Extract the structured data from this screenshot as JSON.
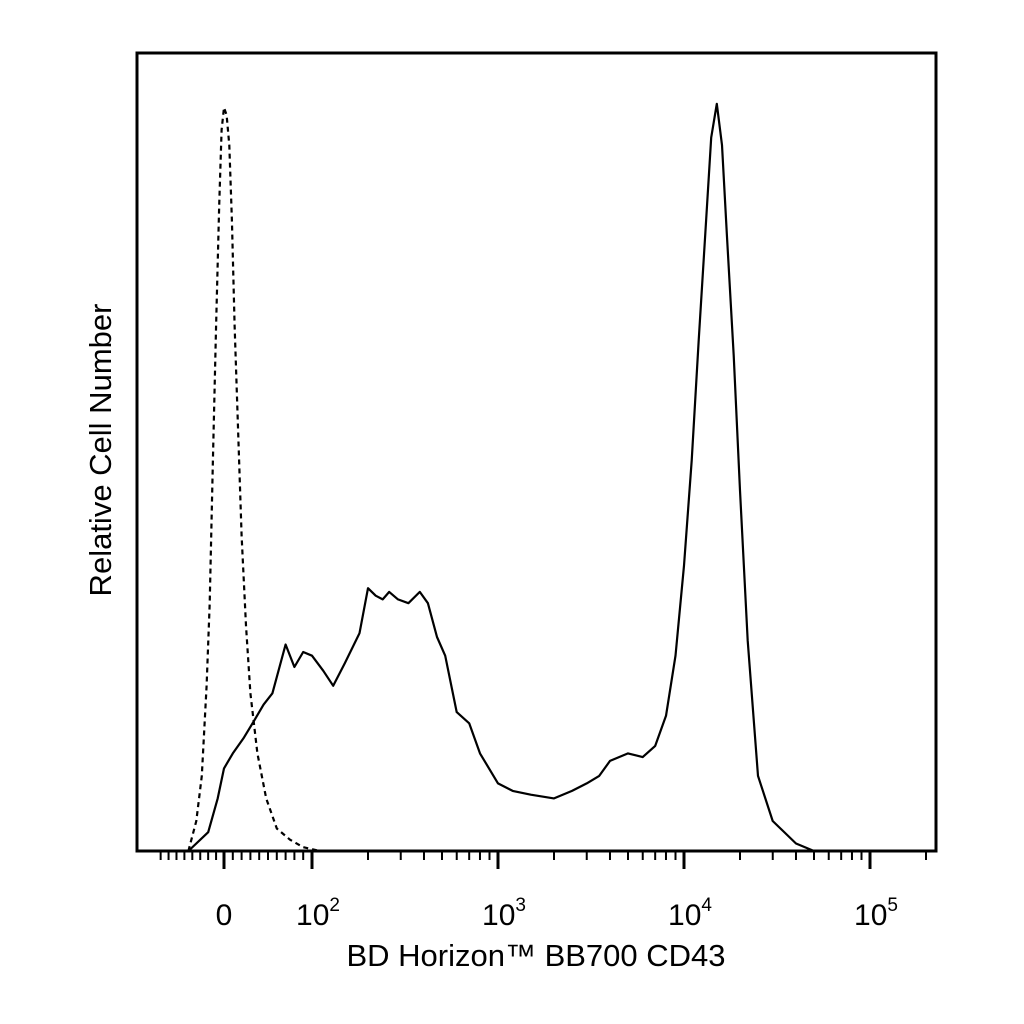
{
  "chart_data": {
    "type": "line",
    "xlabel": "BD Horizon™ BB700 CD43",
    "ylabel": "Relative Cell Number",
    "x_scale": "biexponential",
    "xlim": [
      -60,
      250000
    ],
    "ylim": [
      0,
      100
    ],
    "grid": false,
    "legend": "none",
    "x_tick_labels": [
      {
        "value": 0,
        "base": "0",
        "exp": ""
      },
      {
        "value": 100,
        "base": "10",
        "exp": "2"
      },
      {
        "value": 1000,
        "base": "10",
        "exp": "3"
      },
      {
        "value": 10000,
        "base": "10",
        "exp": "4"
      },
      {
        "value": 100000,
        "base": "10",
        "exp": "5"
      }
    ],
    "series": [
      {
        "style": "dashed",
        "x": [
          -45,
          -35,
          -28,
          -22,
          -18,
          -14,
          -10,
          -6,
          -3,
          0,
          3,
          6,
          9,
          12,
          16,
          20,
          25,
          30,
          38,
          48,
          60,
          75,
          90,
          110,
          130
        ],
        "y": [
          0,
          4,
          10,
          22,
          33,
          52,
          70,
          86,
          96,
          99,
          98,
          94,
          84,
          70,
          56,
          42,
          30,
          21,
          13,
          7,
          3,
          1.5,
          0.5,
          0,
          0
        ]
      },
      {
        "style": "solid",
        "x": [
          -45,
          -20,
          -8,
          0,
          10,
          22,
          35,
          45,
          55,
          70,
          80,
          90,
          100,
          115,
          130,
          150,
          180,
          200,
          220,
          240,
          260,
          290,
          330,
          380,
          420,
          470,
          520,
          600,
          700,
          800,
          1000,
          1200,
          1500,
          2000,
          2500,
          3000,
          3500,
          4000,
          5000,
          6000,
          7000,
          8000,
          9000,
          10000,
          11000,
          12000,
          13000,
          14000,
          15000,
          16000,
          17000,
          18500,
          20000,
          22000,
          25000,
          30000,
          40000,
          50000
        ],
        "y": [
          0,
          2.5,
          7,
          11,
          13,
          15,
          17.5,
          19.5,
          21,
          27.5,
          24.5,
          26.5,
          26,
          24,
          22,
          25,
          29,
          35,
          34,
          33.5,
          34.5,
          33.5,
          33,
          34.5,
          33,
          28.5,
          26,
          18.5,
          17,
          13,
          9,
          8,
          7.5,
          7,
          8,
          9,
          10,
          12,
          13,
          12.5,
          14,
          18,
          26,
          38,
          52,
          68,
          82,
          95,
          99.5,
          94,
          82,
          66,
          48,
          28,
          10,
          4,
          1,
          0
        ]
      }
    ]
  }
}
